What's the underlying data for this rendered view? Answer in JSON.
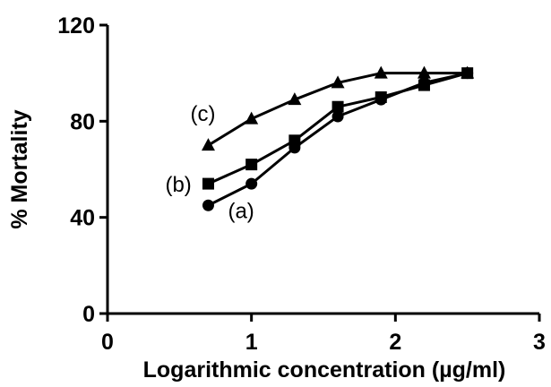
{
  "chart_data": {
    "type": "line",
    "title": "",
    "xlabel": "Logarithmic concentration (µg/ml)",
    "ylabel": "% Mortality",
    "xlim": [
      0,
      3
    ],
    "ylim": [
      0,
      120
    ],
    "xticks": [
      "0",
      "1",
      "2",
      "3"
    ],
    "yticks": [
      "0",
      "40",
      "80",
      "120"
    ],
    "grid": false,
    "legend": "none",
    "series": [
      {
        "name": "(a)",
        "marker": "circle",
        "color": "#000000",
        "x": [
          0.7,
          1.0,
          1.3,
          1.6,
          1.9,
          2.2,
          2.5
        ],
        "values": [
          45,
          54,
          69,
          82,
          89,
          96,
          100
        ]
      },
      {
        "name": "(b)",
        "marker": "square",
        "color": "#000000",
        "x": [
          0.7,
          1.0,
          1.3,
          1.6,
          1.9,
          2.2,
          2.5
        ],
        "values": [
          54,
          62,
          72,
          86,
          90,
          95,
          100
        ]
      },
      {
        "name": "(c)",
        "marker": "triangle",
        "color": "#000000",
        "x": [
          0.7,
          1.0,
          1.3,
          1.6,
          1.9,
          2.2,
          2.5
        ],
        "values": [
          70,
          81,
          89,
          96,
          100,
          100,
          100
        ]
      }
    ]
  }
}
